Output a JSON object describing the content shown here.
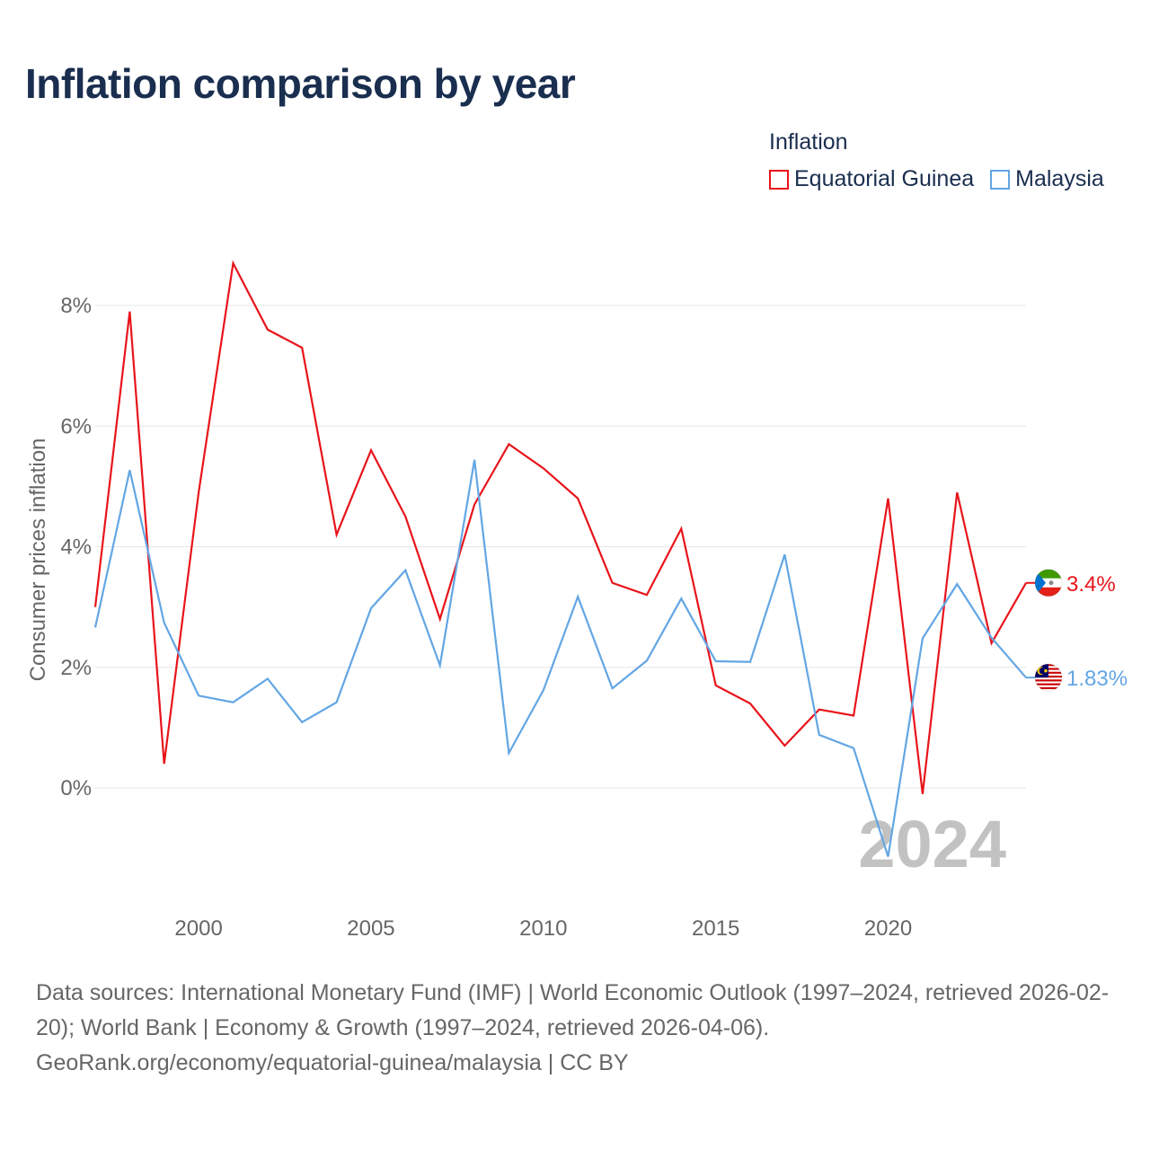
{
  "title": "Inflation comparison by year",
  "legend": {
    "title": "Inflation"
  },
  "current_year_label": "2024",
  "footer": {
    "sources": "Data sources: International Monetary Fund (IMF) | World Economic Outlook (1997–2024, retrieved 2026-02-20); World Bank | Economy & Growth (1997–2024, retrieved 2026-04-06).",
    "credit": "GeoRank.org/economy/equatorial-guinea/malaysia | CC BY"
  },
  "chart_data": {
    "type": "line",
    "ylabel": "Consumer prices inflation",
    "xlabel": "",
    "xlim": [
      1997,
      2024
    ],
    "ylim": [
      -2,
      9
    ],
    "y_ticks": [
      0,
      2,
      4,
      6,
      8
    ],
    "y_tick_labels": [
      "0%",
      "2%",
      "4%",
      "6%",
      "8%"
    ],
    "x_ticks": [
      2000,
      2005,
      2010,
      2015,
      2020
    ],
    "x_tick_labels": [
      "2000",
      "2005",
      "2010",
      "2015",
      "2020"
    ],
    "x": [
      1997,
      1998,
      1999,
      2000,
      2001,
      2002,
      2003,
      2004,
      2005,
      2006,
      2007,
      2008,
      2009,
      2010,
      2011,
      2012,
      2013,
      2014,
      2015,
      2016,
      2017,
      2018,
      2019,
      2020,
      2021,
      2022,
      2023,
      2024
    ],
    "series": [
      {
        "name": "Equatorial Guinea",
        "color": "#e8141b",
        "end_label": "3.4%",
        "flag": "equatorial-guinea-flag-icon",
        "values": [
          3.0,
          7.9,
          0.4,
          4.9,
          8.7,
          7.6,
          7.3,
          4.2,
          5.6,
          4.5,
          2.8,
          4.7,
          5.7,
          5.3,
          4.8,
          3.4,
          3.2,
          4.3,
          1.7,
          1.4,
          0.7,
          1.3,
          1.2,
          4.8,
          -0.1,
          4.9,
          2.4,
          3.4
        ]
      },
      {
        "name": "Malaysia",
        "color": "#63a6e4",
        "end_label": "1.83%",
        "flag": "malaysia-flag-icon",
        "values": [
          2.66,
          5.27,
          2.74,
          1.53,
          1.42,
          1.81,
          1.09,
          1.42,
          2.98,
          3.61,
          2.03,
          5.44,
          0.58,
          1.62,
          3.17,
          1.65,
          2.11,
          3.14,
          2.1,
          2.09,
          3.87,
          0.88,
          0.66,
          -1.14,
          2.48,
          3.38,
          2.49,
          1.83
        ]
      }
    ]
  }
}
